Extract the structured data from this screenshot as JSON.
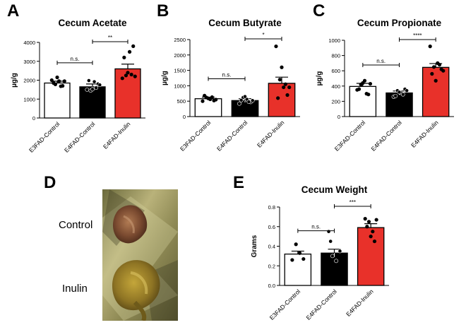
{
  "panel_letters": {
    "a": "A",
    "b": "B",
    "c": "C",
    "d": "D",
    "e": "E"
  },
  "photo": {
    "labels": {
      "control": "Control",
      "inulin": "Inulin"
    }
  },
  "colors": {
    "e3_control": "#ffffff",
    "e4_control": "#000000",
    "e4_inulin": "#e8312a",
    "axis": "#000000"
  },
  "chart_data": [
    {
      "type": "bar",
      "panel": "A",
      "title": "Cecum Acetate",
      "ylabel": "µg/g",
      "xlabel": "",
      "ylim": [
        0,
        4000
      ],
      "yticks": [
        "0",
        "1000",
        "2000",
        "3000",
        "4000"
      ],
      "categories": [
        "E3FAD-Control",
        "E4FAD-Control",
        "E4FAD-Inulin"
      ],
      "values": [
        1850,
        1650,
        2600
      ],
      "errors": [
        100,
        150,
        250
      ],
      "points": [
        [
          2000,
          1780,
          1950,
          1700,
          1850,
          2150,
          1680,
          1950
        ],
        [
          1500,
          1450,
          1920,
          1800,
          1980,
          1520,
          1600,
          1750
        ],
        [
          2100,
          2250,
          3500,
          3800,
          3200,
          2400,
          2300,
          2200
        ]
      ],
      "significance": [
        "n.s.",
        "**"
      ]
    },
    {
      "type": "bar",
      "panel": "B",
      "title": "Cecum Butyrate",
      "ylabel": "µg/g",
      "xlabel": "",
      "ylim": [
        0,
        2500
      ],
      "yticks": [
        "0",
        "500",
        "1000",
        "1500",
        "2000",
        "2500"
      ],
      "categories": [
        "E3FAD-Control",
        "E4FAD-Control",
        "E4FAD-Inulin"
      ],
      "values": [
        580,
        520,
        1080
      ],
      "errors": [
        50,
        60,
        200
      ],
      "points": [
        [
          500,
          620,
          560,
          520,
          680,
          590,
          630,
          550
        ],
        [
          420,
          620,
          560,
          470,
          530,
          650,
          480,
          520
        ],
        [
          2280,
          1200,
          950,
          700,
          600,
          1600,
          1050,
          950
        ]
      ],
      "significance": [
        "n.s.",
        "*"
      ]
    },
    {
      "type": "bar",
      "panel": "C",
      "title": "Cecum Propionate",
      "ylabel": "µg/g",
      "xlabel": "",
      "ylim": [
        0,
        1000
      ],
      "yticks": [
        "0",
        "200",
        "400",
        "600",
        "800",
        "1000"
      ],
      "categories": [
        "E3FAD-Control",
        "E4FAD-Control",
        "E4FAD-Inulin"
      ],
      "values": [
        395,
        310,
        645
      ],
      "errors": [
        40,
        25,
        50
      ],
      "points": [
        [
          350,
          420,
          470,
          290,
          360,
          440,
          300,
          430
        ],
        [
          260,
          340,
          310,
          360,
          270,
          320,
          290,
          340
        ],
        [
          920,
          650,
          700,
          620,
          560,
          470,
          680,
          600
        ]
      ],
      "significance": [
        "n.s.",
        "****"
      ]
    },
    {
      "type": "bar",
      "panel": "E",
      "title": "Cecum Weight",
      "ylabel": "Grams",
      "xlabel": "",
      "ylim": [
        0,
        0.8
      ],
      "yticks": [
        "0.0",
        "0.2",
        "0.4",
        "0.6",
        "0.8"
      ],
      "categories": [
        "E3FAD-Control",
        "E4FAD-Control",
        "E4FAD-Inulin"
      ],
      "values": [
        0.32,
        0.33,
        0.59
      ],
      "errors": [
        0.03,
        0.04,
        0.04
      ],
      "points": [
        [
          0.26,
          0.42,
          0.33,
          0.27
        ],
        [
          0.55,
          0.3,
          0.25,
          0.35,
          0.45
        ],
        [
          0.68,
          0.65,
          0.55,
          0.67,
          0.6,
          0.5,
          0.45
        ]
      ],
      "significance": [
        "n.s.",
        "***"
      ]
    }
  ]
}
